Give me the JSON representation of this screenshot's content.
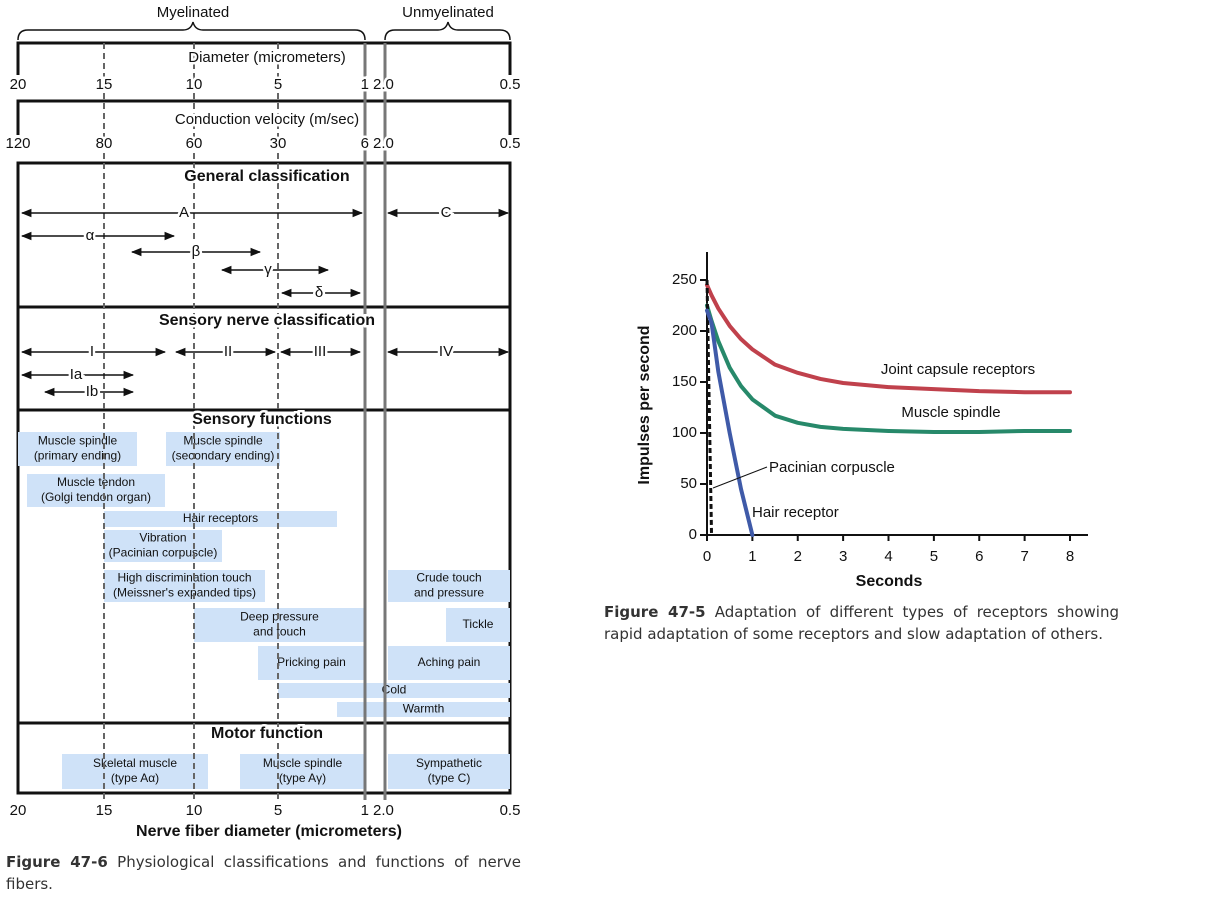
{
  "diagram": {
    "myelinated": "Myelinated",
    "unmyelinated": "Unmyelinated",
    "diameter": {
      "title": "Diameter (micrometers)",
      "ticks": [
        "20",
        "15",
        "10",
        "5",
        "1",
        "2.0",
        "0.5"
      ]
    },
    "velocity": {
      "title": "Conduction velocity (m/sec)",
      "ticks": [
        "120",
        "80",
        "60",
        "30",
        "6",
        "2.0",
        "0.5"
      ]
    },
    "general": {
      "title": "General classification",
      "arrows": [
        "A",
        "C",
        "α",
        "β",
        "γ",
        "δ"
      ]
    },
    "sensory_classification": {
      "title": "Sensory nerve classification",
      "arrows": [
        "I",
        "II",
        "III",
        "IV",
        "Ia",
        "Ib"
      ]
    },
    "sensory_functions": {
      "title": "Sensory functions",
      "boxes": [
        [
          "Muscle spindle",
          "(primary ending)"
        ],
        [
          "Muscle spindle",
          "(secondary ending)"
        ],
        [
          "Muscle tendon",
          "(Golgi tendon organ)"
        ],
        [
          "Hair receptors"
        ],
        [
          "Vibration",
          "(Pacinian corpuscle)"
        ],
        [
          "High discrimination touch",
          "(Meissner's expanded tips)"
        ],
        [
          "Crude touch",
          "and pressure"
        ],
        [
          "Deep pressure",
          "and touch"
        ],
        [
          "Tickle"
        ],
        [
          "Pricking pain"
        ],
        [
          "Aching pain"
        ],
        [
          "Cold"
        ],
        [
          "Warmth"
        ]
      ]
    },
    "motor_function": {
      "title": "Motor function",
      "boxes": [
        [
          "Skeletal muscle",
          "(type Aα)"
        ],
        [
          "Muscle spindle",
          "(type Aγ)"
        ],
        [
          "Sympathetic",
          "(type C)"
        ]
      ]
    },
    "axis": {
      "ticks": [
        "20",
        "15",
        "10",
        "5",
        "1",
        "2.0",
        "0.5"
      ],
      "title": "Nerve fiber diameter (micrometers)"
    },
    "caption": {
      "label": "Figure 47-6",
      "text": "Physiological classifications and functions of nerve fibers."
    }
  },
  "chart_data": {
    "type": "line",
    "x_label": "Seconds",
    "y_label": "Impulses per second",
    "x": [
      0,
      0.1,
      0.25,
      0.5,
      0.75,
      1,
      1.5,
      2,
      2.5,
      3,
      4,
      5,
      6,
      7,
      8
    ],
    "series": [
      {
        "name": "Joint capsule receptors",
        "color": "#c0414c",
        "values": [
          245,
          235,
          222,
          205,
          192,
          182,
          167,
          159,
          153,
          149,
          145,
          143,
          141,
          140,
          140
        ]
      },
      {
        "name": "Muscle spindle",
        "color": "#27896a",
        "values": [
          225,
          210,
          190,
          164,
          146,
          133,
          117,
          110,
          106,
          104,
          102,
          101,
          101,
          102,
          102
        ]
      },
      {
        "name": "Pacinian corpuscle",
        "color": "#111111",
        "dashed": true,
        "values": [
          250,
          0,
          null,
          null,
          null,
          null,
          null,
          null,
          null,
          null,
          null,
          null,
          null,
          null,
          null
        ]
      },
      {
        "name": "Hair receptor",
        "color": "#3f5aa8",
        "values": [
          220,
          208,
          160,
          100,
          45,
          0,
          null,
          null,
          null,
          null,
          null,
          null,
          null,
          null,
          null
        ]
      }
    ],
    "xlim": [
      0,
      8
    ],
    "ylim": [
      0,
      250
    ],
    "xticks": [
      0,
      1,
      2,
      3,
      4,
      5,
      6,
      7,
      8
    ],
    "yticks": [
      0,
      50,
      100,
      150,
      200,
      250
    ],
    "caption": {
      "label": "Figure 47-5",
      "text": "Adaptation of different types of receptors showing rapid adaptation of some receptors and slow adaptation of others."
    }
  }
}
